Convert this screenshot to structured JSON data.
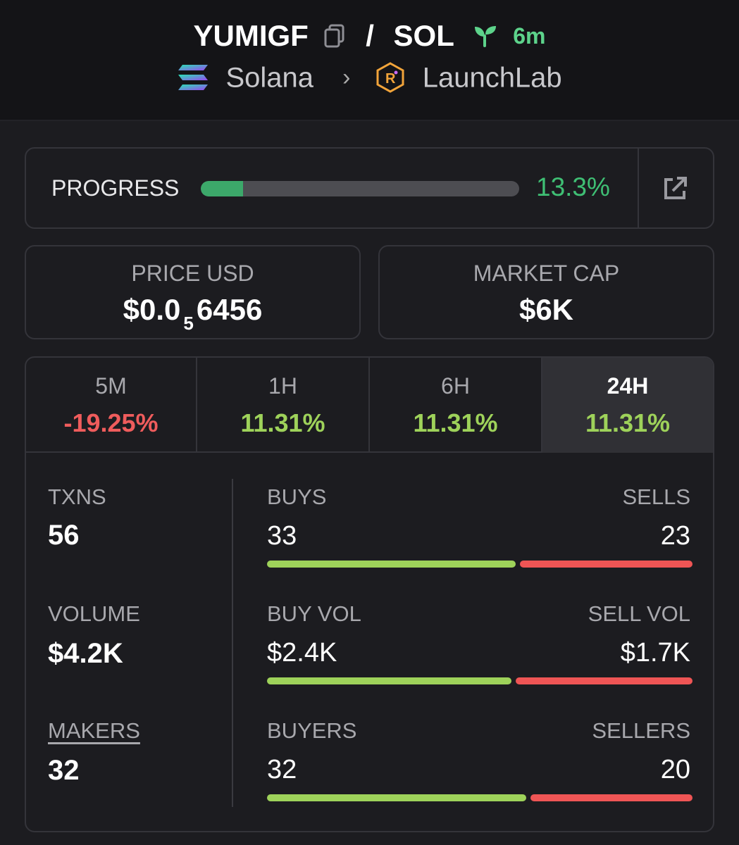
{
  "header": {
    "token": "YUMIGF",
    "separator": "/",
    "quote": "SOL",
    "age": "6m",
    "chain": "Solana",
    "launchpad": "LaunchLab"
  },
  "progress": {
    "label": "PROGRESS",
    "percent_text": "13.3%",
    "percent": 13.3
  },
  "price": {
    "label": "PRICE USD",
    "prefix": "$0.0",
    "zeros": "5",
    "digits": "6456"
  },
  "market_cap": {
    "label": "MARKET CAP",
    "value": "$6K"
  },
  "tabs": [
    {
      "label": "5M",
      "value": "-19.25%",
      "trend": "negative"
    },
    {
      "label": "1H",
      "value": "11.31%",
      "trend": "positive"
    },
    {
      "label": "6H",
      "value": "11.31%",
      "trend": "positive"
    },
    {
      "label": "24H",
      "value": "11.31%",
      "trend": "positive",
      "active": true
    }
  ],
  "stats": {
    "txns": {
      "label": "TXNS",
      "value": "56"
    },
    "volume": {
      "label": "VOLUME",
      "value": "$4.2K"
    },
    "makers": {
      "label": "MAKERS",
      "value": "32"
    }
  },
  "split": {
    "buys": {
      "label": "BUYS",
      "value": "33",
      "buy_share": 0.59
    },
    "sells": {
      "label": "SELLS",
      "value": "23"
    },
    "buy_vol": {
      "label": "BUY VOL",
      "value": "$2.4K",
      "buy_share": 0.58
    },
    "sell_vol": {
      "label": "SELL VOL",
      "value": "$1.7K"
    },
    "buyers": {
      "label": "BUYERS",
      "value": "32",
      "buy_share": 0.615
    },
    "sellers": {
      "label": "SELLERS",
      "value": "20"
    }
  },
  "colors": {
    "green": "#3fbf74",
    "lime": "#9ed25a",
    "red": "#ef5c5c",
    "background": "#1c1c20"
  }
}
